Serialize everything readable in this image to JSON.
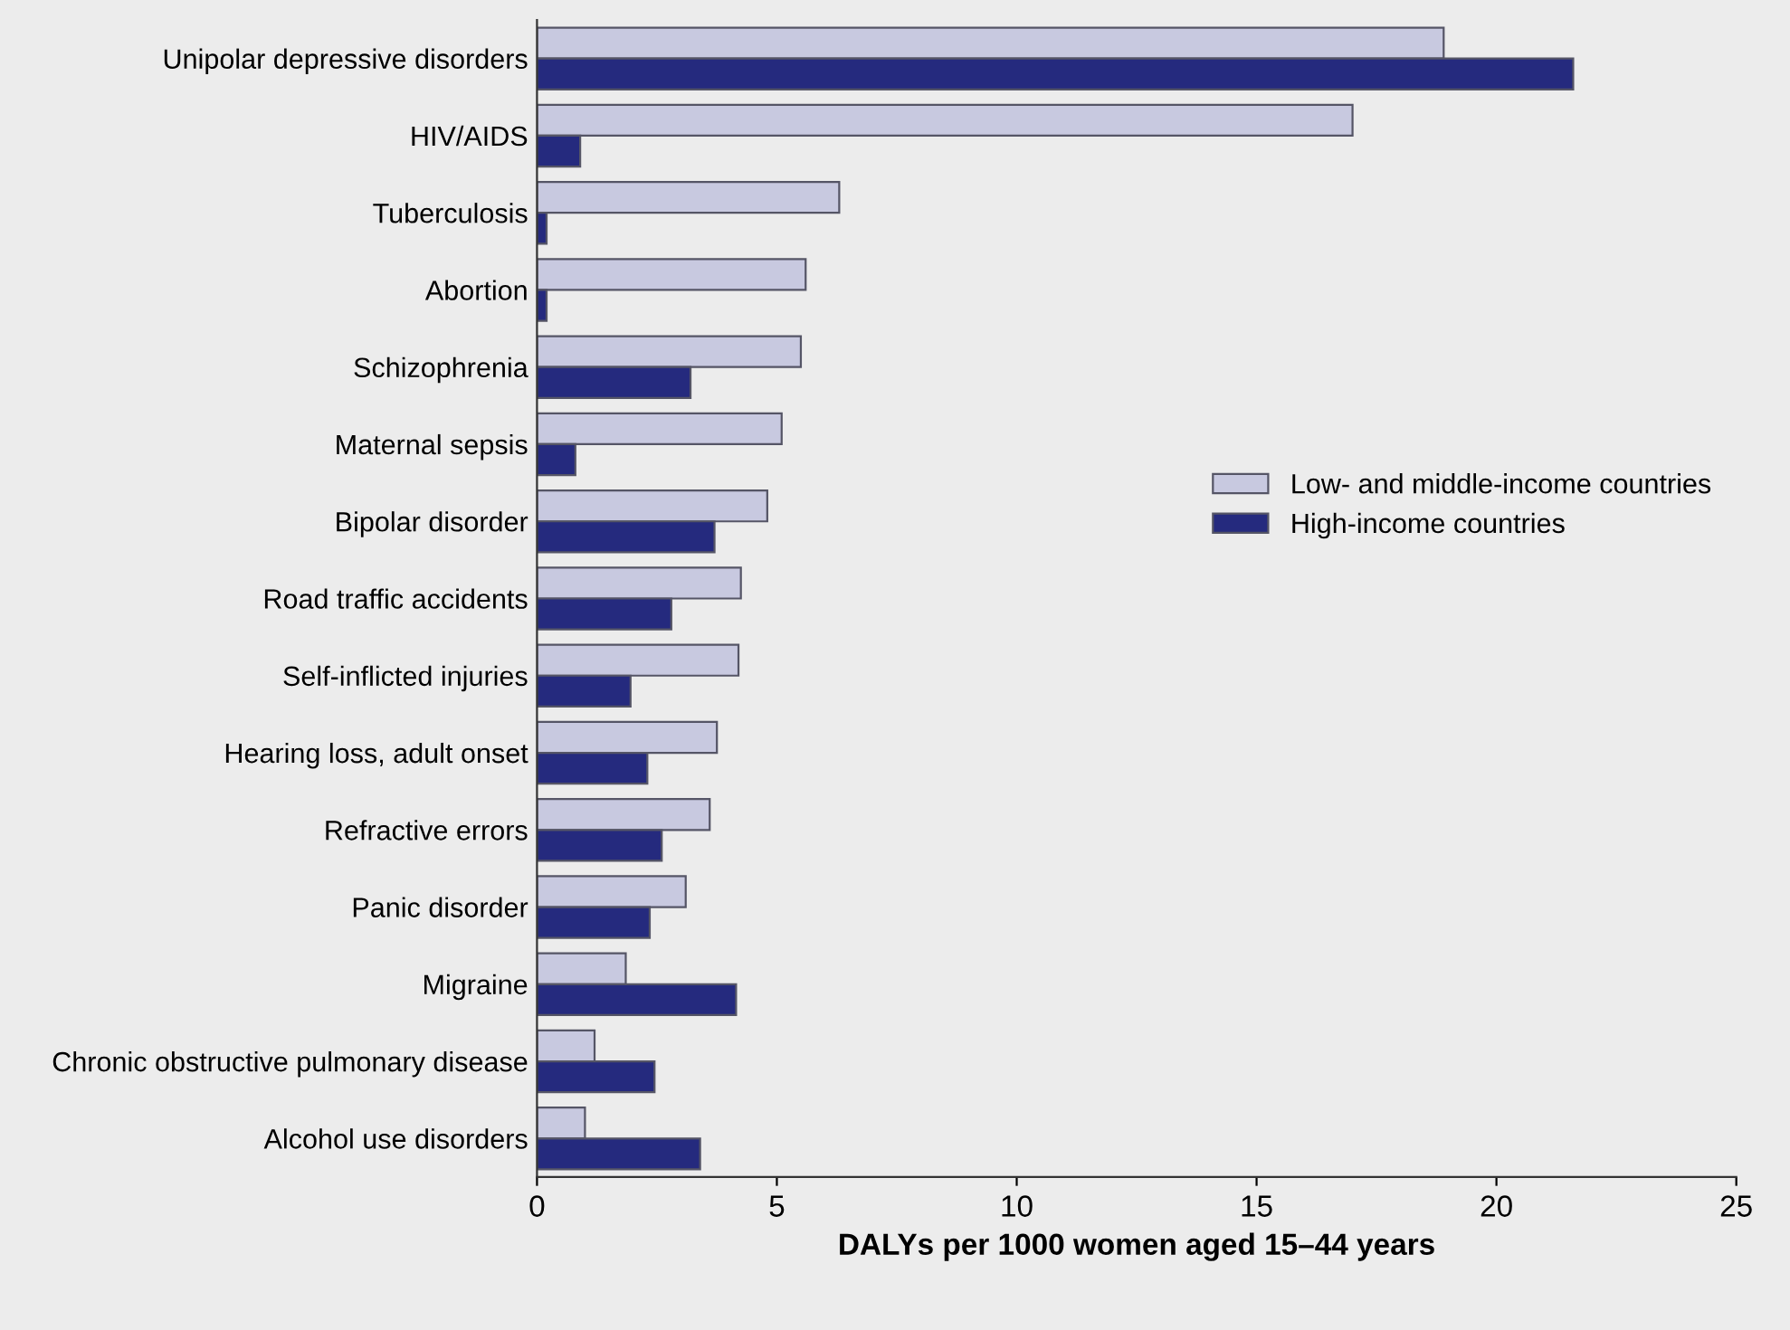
{
  "chart_data": {
    "type": "bar",
    "orientation": "horizontal",
    "xlabel": "DALYs per 1000 women aged 15–44 years",
    "categories": [
      "Unipolar depressive disorders",
      "HIV/AIDS",
      "Tuberculosis",
      "Abortion",
      "Schizophrenia",
      "Maternal sepsis",
      "Bipolar disorder",
      "Road traffic accidents",
      "Self-inflicted injuries",
      "Hearing loss, adult onset",
      "Refractive errors",
      "Panic disorder",
      "Migraine",
      "Chronic obstructive pulmonary disease",
      "Alcohol use disorders"
    ],
    "series": [
      {
        "name": "Low- and middle-income countries",
        "color": "#c8c9e0",
        "values": [
          18.9,
          17.0,
          6.3,
          5.6,
          5.5,
          5.1,
          4.8,
          4.25,
          4.2,
          3.75,
          3.6,
          3.1,
          1.85,
          1.2,
          1.0
        ]
      },
      {
        "name": "High-income countries",
        "color": "#252a7e",
        "values": [
          21.6,
          0.9,
          0.2,
          0.2,
          3.2,
          0.8,
          3.7,
          2.8,
          1.95,
          2.3,
          2.6,
          2.35,
          4.15,
          2.45,
          3.4
        ]
      }
    ],
    "xlim": [
      0,
      25
    ],
    "xticks": [
      0,
      5,
      10,
      15,
      20,
      25
    ],
    "grid": false,
    "legend": "right"
  }
}
